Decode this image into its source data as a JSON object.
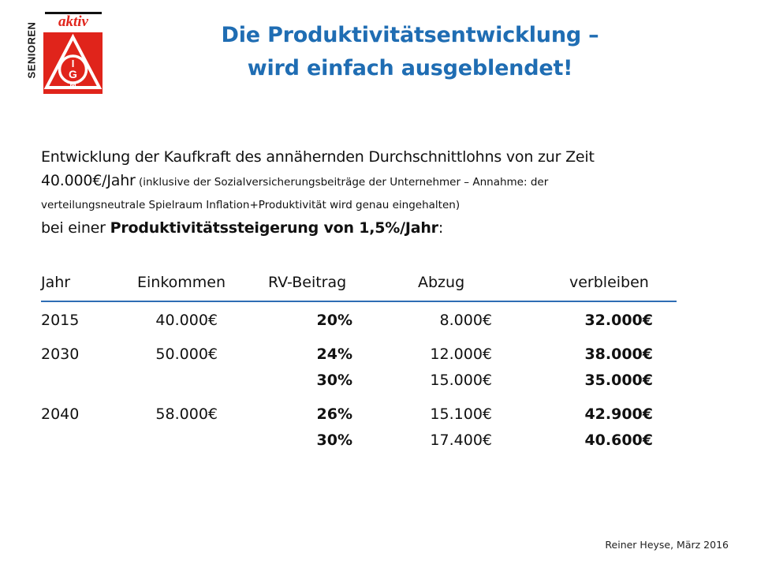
{
  "logo": {
    "side_text": "SENIOREN",
    "badge_text": "aktiv",
    "emblem_text": "IGM"
  },
  "title": {
    "line1": "Die Produktivitätsentwicklung –",
    "line2": "wird einfach ausgeblendet!"
  },
  "intro": {
    "line1": "Entwicklung  der Kaufkraft des annähernden Durchschnittlohns  von zur Zeit",
    "line2_main": "40.000€/Jahr",
    "line2_small": " (inklusive der Sozialversicherungsbeiträge  der Unternehmer  – Annahme: der",
    "line3": "verteilungsneutrale  Spielraum Inflation+Produktivität wird genau eingehalten)",
    "line4_pre": "bei einer ",
    "line4_bold": "Produktivitätssteigerung von 1,5%/Jahr",
    "line4_post": ":"
  },
  "table": {
    "headers": [
      "Jahr",
      "Einkommen",
      "RV-Beitrag",
      "Abzug",
      "verbleiben"
    ],
    "rows": [
      {
        "year": "2015",
        "income": "40.000€",
        "rate": "20%",
        "deduction": "8.000€",
        "remaining": "32.000€"
      },
      {
        "year": "2030",
        "income": "50.000€",
        "rate": "24%",
        "deduction": "12.000€",
        "remaining": "38.000€"
      },
      {
        "year": "",
        "income": "",
        "rate": "30%",
        "deduction": "15.000€",
        "remaining": "35.000€"
      },
      {
        "year": "2040",
        "income": "58.000€",
        "rate": "26%",
        "deduction": "15.100€",
        "remaining": "42.900€"
      },
      {
        "year": "",
        "income": "",
        "rate": "30%",
        "deduction": "17.400€",
        "remaining": "40.600€"
      }
    ]
  },
  "footer": {
    "credit": "Reiner Heyse, März 2016"
  },
  "colors": {
    "title": "#1f6db3",
    "rule": "#2e6db4",
    "logo_red": "#e0241b"
  }
}
